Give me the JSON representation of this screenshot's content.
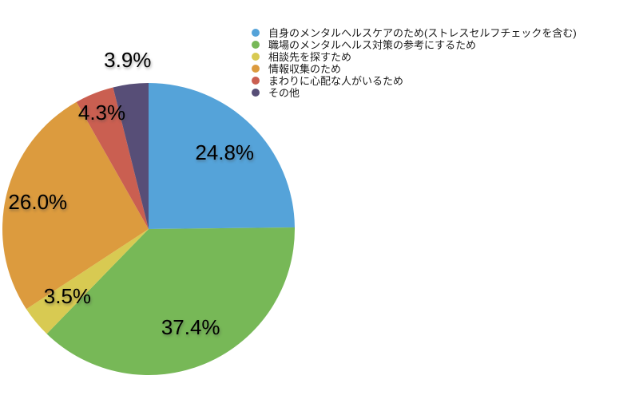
{
  "chart_data": {
    "type": "pie",
    "categories": [
      "自身のメンタルヘルスケアのため(ストレスセルフチェックを含む)",
      "職場のメンタルヘルス対策の参考にするため",
      "相談先を探すため",
      "情報収集のため",
      "まわりに心配な人がいるため",
      "その他"
    ],
    "values": [
      24.8,
      37.4,
      3.5,
      26.0,
      4.3,
      3.9
    ],
    "labels": [
      "24.8%",
      "37.4%",
      "3.5%",
      "26.0%",
      "4.3%",
      "3.9%"
    ],
    "colors": [
      "#55A3D9",
      "#77B857",
      "#D8CA52",
      "#DC9B3E",
      "#CA5F51",
      "#574E77"
    ],
    "title": "",
    "legend_position": "top-right",
    "start_angle": "12-o'clock, clockwise",
    "label_text_color": "#000000"
  }
}
